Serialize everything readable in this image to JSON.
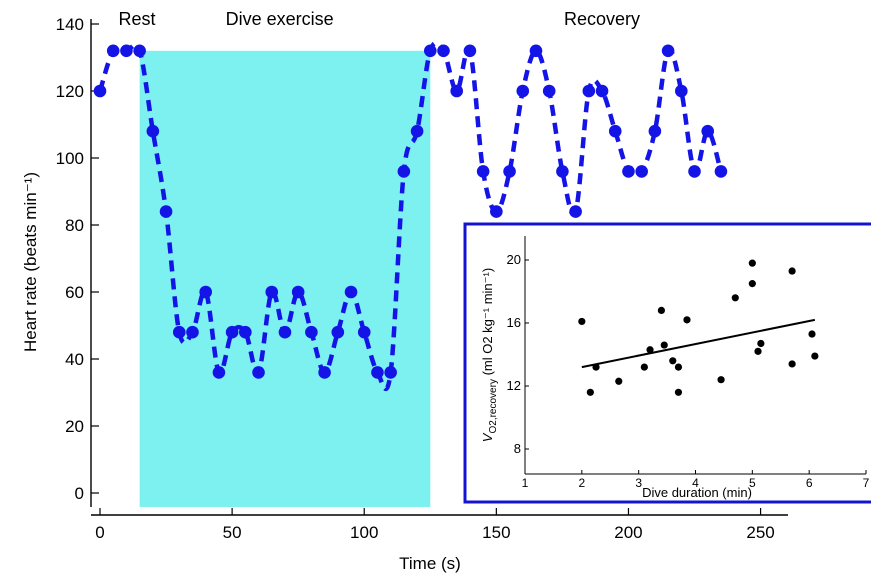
{
  "chart_data": [
    {
      "type": "line",
      "xlabel": "Time (s)",
      "ylabel": "Heart rate (beats min⁻¹)",
      "xlim": [
        0,
        260
      ],
      "ylim": [
        0,
        140
      ],
      "xticks": [
        0,
        50,
        100,
        150,
        200,
        250
      ],
      "yticks": [
        0,
        20,
        40,
        60,
        80,
        100,
        120,
        140
      ],
      "grid": false,
      "shaded_region": {
        "x_start": 15,
        "x_end": 125,
        "color": "#7df0f0"
      },
      "phase_labels": [
        {
          "text": "Rest",
          "x": 7
        },
        {
          "text": "Dive exercise",
          "x": 68
        },
        {
          "text": "Recovery",
          "x": 190
        }
      ],
      "series": [
        {
          "color": "#1414e6",
          "style": "dashed-with-markers",
          "x": [
            0,
            5,
            10,
            15,
            20,
            25,
            30,
            35,
            40,
            45,
            50,
            55,
            60,
            65,
            70,
            75,
            80,
            85,
            90,
            95,
            100,
            105,
            110,
            115,
            120,
            125,
            130,
            135,
            140,
            145,
            150,
            155,
            160,
            165,
            170,
            175,
            180,
            185,
            190,
            195,
            200,
            205,
            210,
            215,
            220,
            225,
            230,
            235
          ],
          "values": [
            120,
            132,
            132,
            132,
            108,
            84,
            48,
            48,
            60,
            36,
            48,
            48,
            36,
            60,
            48,
            60,
            48,
            36,
            48,
            60,
            48,
            36,
            36,
            96,
            108,
            132,
            132,
            120,
            132,
            96,
            84,
            96,
            120,
            132,
            120,
            96,
            84,
            120,
            120,
            108,
            96,
            96,
            108,
            132,
            120,
            96,
            108,
            96
          ]
        }
      ]
    },
    {
      "type": "scatter",
      "xlabel": "Dive duration (min)",
      "ylabel_main": "V",
      "ylabel_sub": "O2,recovery",
      "ylabel_unit": " (ml O2 kg⁻¹ min⁻¹)",
      "xlim": [
        1,
        7
      ],
      "ylim": [
        7,
        22
      ],
      "xticks": [
        1,
        2,
        3,
        4,
        5,
        6,
        7
      ],
      "yticks": [
        8,
        12,
        16,
        20
      ],
      "grid": false,
      "border_color": "#1414d0",
      "points": [
        [
          2.0,
          16.1
        ],
        [
          2.15,
          11.6
        ],
        [
          2.25,
          13.2
        ],
        [
          2.65,
          12.3
        ],
        [
          3.1,
          13.2
        ],
        [
          3.2,
          14.3
        ],
        [
          3.4,
          16.8
        ],
        [
          3.45,
          14.6
        ],
        [
          3.6,
          13.6
        ],
        [
          3.7,
          13.2
        ],
        [
          3.7,
          11.6
        ],
        [
          3.85,
          16.2
        ],
        [
          4.45,
          12.4
        ],
        [
          4.7,
          17.6
        ],
        [
          5.0,
          19.8
        ],
        [
          5.0,
          18.5
        ],
        [
          5.1,
          14.2
        ],
        [
          5.15,
          14.7
        ],
        [
          5.7,
          19.3
        ],
        [
          5.7,
          13.4
        ],
        [
          6.05,
          15.3
        ],
        [
          6.1,
          13.9
        ]
      ],
      "trendline": {
        "x": [
          2.0,
          6.1
        ],
        "y": [
          13.2,
          16.2
        ]
      }
    }
  ]
}
